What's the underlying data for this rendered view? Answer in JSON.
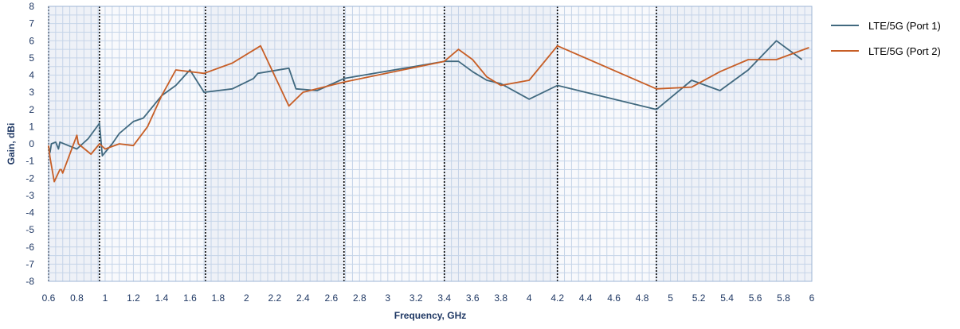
{
  "chart_data": {
    "type": "line",
    "xlabel": "Frequency, GHz",
    "ylabel": "Gain, dBi",
    "xlim": [
      0.6,
      6
    ],
    "ylim": [
      -8,
      8
    ],
    "x_ticks": [
      "0.6",
      "0.8",
      "1",
      "1.2",
      "1.4",
      "1.6",
      "1.8",
      "2",
      "2.2",
      "2.4",
      "2.6",
      "2.8",
      "3",
      "3.2",
      "3.4",
      "3.6",
      "3.8",
      "4",
      "4.2",
      "4.4",
      "4.6",
      "4.8",
      "5",
      "5.2",
      "5.4",
      "5.6",
      "5.8",
      "6"
    ],
    "y_ticks": [
      "8",
      "7",
      "6",
      "5",
      "4",
      "3",
      "2",
      "1",
      "0",
      "-1",
      "-2",
      "-3",
      "-4",
      "-5",
      "-6",
      "-7",
      "-8"
    ],
    "band_boundaries_ghz": [
      0.6,
      0.96,
      1.71,
      2.69,
      3.4,
      4.2,
      4.9
    ],
    "grid": true,
    "legend_position": "right",
    "series": [
      {
        "name": "LTE/5G (Port 1)",
        "color": "#41697f",
        "points": [
          [
            0.6,
            -0.2
          ],
          [
            0.61,
            -0.5
          ],
          [
            0.62,
            0.0
          ],
          [
            0.65,
            0.1
          ],
          [
            0.67,
            -0.3
          ],
          [
            0.68,
            0.1
          ],
          [
            0.74,
            -0.1
          ],
          [
            0.8,
            -0.3
          ],
          [
            0.88,
            0.3
          ],
          [
            0.96,
            1.2
          ],
          [
            0.98,
            -0.7
          ],
          [
            1.05,
            0.0
          ],
          [
            1.1,
            0.6
          ],
          [
            1.2,
            1.3
          ],
          [
            1.27,
            1.5
          ],
          [
            1.4,
            2.8
          ],
          [
            1.5,
            3.4
          ],
          [
            1.6,
            4.3
          ],
          [
            1.7,
            3.0
          ],
          [
            1.9,
            3.2
          ],
          [
            2.05,
            3.8
          ],
          [
            2.08,
            4.1
          ],
          [
            2.3,
            4.4
          ],
          [
            2.35,
            3.2
          ],
          [
            2.5,
            3.1
          ],
          [
            2.69,
            3.8
          ],
          [
            3.4,
            4.8
          ],
          [
            3.5,
            4.8
          ],
          [
            3.6,
            4.2
          ],
          [
            3.7,
            3.7
          ],
          [
            3.8,
            3.5
          ],
          [
            4.0,
            2.6
          ],
          [
            4.2,
            3.4
          ],
          [
            4.9,
            2.0
          ],
          [
            5.15,
            3.7
          ],
          [
            5.35,
            3.1
          ],
          [
            5.55,
            4.3
          ],
          [
            5.75,
            6.0
          ],
          [
            5.93,
            4.9
          ]
        ]
      },
      {
        "name": "LTE/5G (Port 2)",
        "color": "#c75e26",
        "points": [
          [
            0.6,
            -0.1
          ],
          [
            0.61,
            -0.8
          ],
          [
            0.64,
            -2.2
          ],
          [
            0.68,
            -1.5
          ],
          [
            0.69,
            -1.5
          ],
          [
            0.7,
            -1.7
          ],
          [
            0.8,
            0.5
          ],
          [
            0.81,
            0.0
          ],
          [
            0.9,
            -0.6
          ],
          [
            0.96,
            0.0
          ],
          [
            1.0,
            -0.3
          ],
          [
            1.1,
            0.0
          ],
          [
            1.2,
            -0.1
          ],
          [
            1.3,
            1.0
          ],
          [
            1.4,
            2.8
          ],
          [
            1.5,
            4.3
          ],
          [
            1.7,
            4.1
          ],
          [
            1.9,
            4.7
          ],
          [
            2.1,
            5.7
          ],
          [
            2.3,
            2.2
          ],
          [
            2.4,
            3.0
          ],
          [
            2.69,
            3.6
          ],
          [
            3.4,
            4.8
          ],
          [
            3.5,
            5.5
          ],
          [
            3.6,
            4.9
          ],
          [
            3.7,
            3.9
          ],
          [
            3.8,
            3.4
          ],
          [
            4.0,
            3.7
          ],
          [
            4.2,
            5.7
          ],
          [
            4.9,
            3.2
          ],
          [
            5.15,
            3.3
          ],
          [
            5.35,
            4.2
          ],
          [
            5.55,
            4.9
          ],
          [
            5.75,
            4.9
          ],
          [
            5.98,
            5.6
          ]
        ]
      }
    ]
  }
}
